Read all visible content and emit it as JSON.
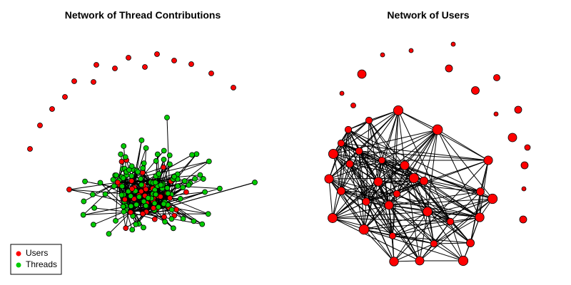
{
  "left_panel": {
    "title": "Network of Thread Contributions",
    "legend": [
      {
        "label": "Users",
        "color": "#ff0000"
      },
      {
        "label": "Threads",
        "color": "#00cc00"
      }
    ]
  },
  "right_panel": {
    "title": "Network of Users"
  }
}
